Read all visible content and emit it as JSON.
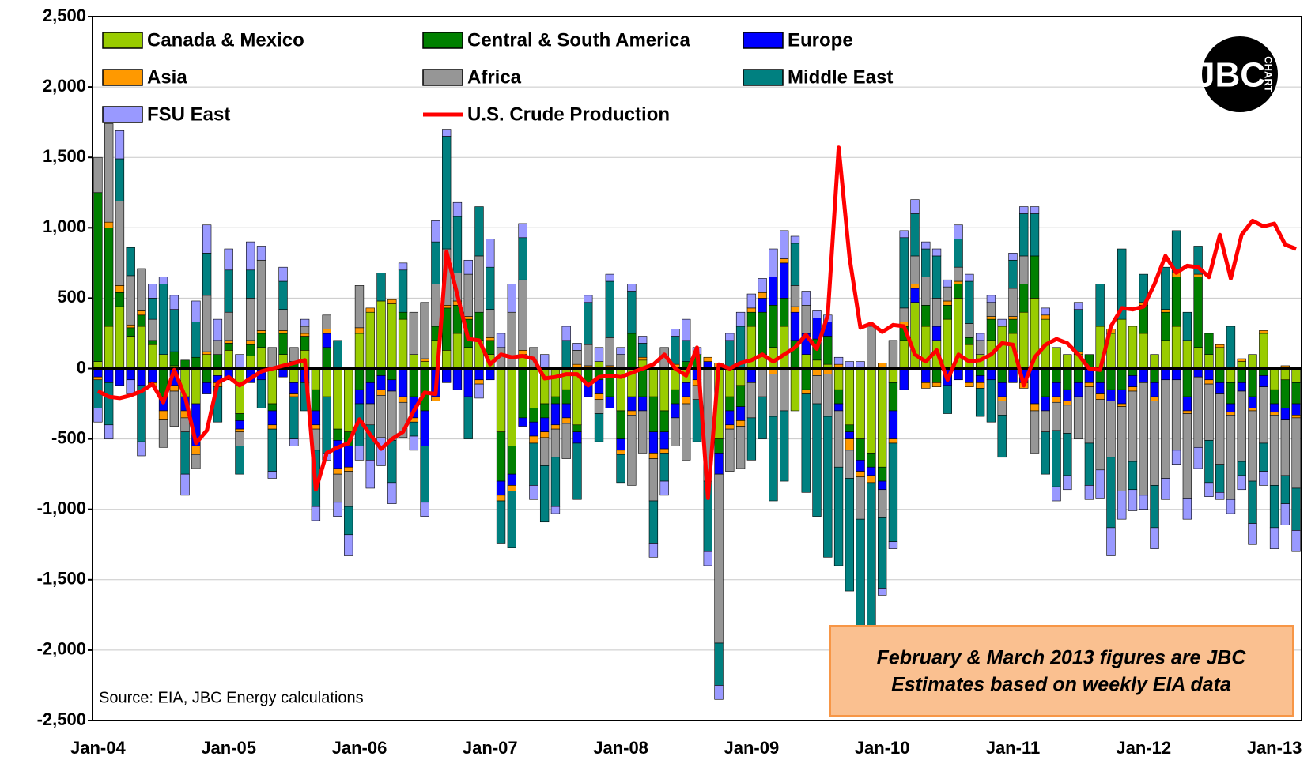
{
  "chart_data": {
    "type": "stacked-bar-line",
    "categories": [
      "Jan-04",
      null,
      null,
      null,
      null,
      null,
      null,
      null,
      null,
      null,
      null,
      null,
      "Jan-05",
      null,
      null,
      null,
      null,
      null,
      null,
      null,
      null,
      null,
      null,
      null,
      "Jan-06",
      null,
      null,
      null,
      null,
      null,
      null,
      null,
      null,
      null,
      null,
      null,
      "Jan-07",
      null,
      null,
      null,
      null,
      null,
      null,
      null,
      null,
      null,
      null,
      null,
      "Jan-08",
      null,
      null,
      null,
      null,
      null,
      null,
      null,
      null,
      null,
      null,
      null,
      "Jan-09",
      null,
      null,
      null,
      null,
      null,
      null,
      null,
      null,
      null,
      null,
      null,
      "Jan-10",
      null,
      null,
      null,
      null,
      null,
      null,
      null,
      null,
      null,
      null,
      null,
      "Jan-11",
      null,
      null,
      null,
      null,
      null,
      null,
      null,
      null,
      null,
      null,
      null,
      "Jan-12",
      null,
      null,
      null,
      null,
      null,
      null,
      null,
      null,
      null,
      null,
      null,
      "Jan-13",
      null,
      null
    ],
    "ylim": [
      -2500,
      2500
    ],
    "yticks": [
      {
        "value": -2500,
        "label": "-2,500"
      },
      {
        "value": -2000,
        "label": "-2,000"
      },
      {
        "value": -1500,
        "label": "-1,500"
      },
      {
        "value": -1000,
        "label": "-1,000"
      },
      -500,
      0,
      500,
      {
        "value": 1000,
        "label": "1,000"
      },
      {
        "value": 1500,
        "label": "1,500"
      },
      {
        "value": 2000,
        "label": "2,000"
      },
      {
        "value": 2500,
        "label": "2,500"
      }
    ],
    "grid": true,
    "series": [
      {
        "name": "Canada & Mexico",
        "color": "#99cc00",
        "type": "bar",
        "values": [
          50,
          300,
          440,
          230,
          300,
          170,
          100,
          20,
          -200,
          -250,
          100,
          -50,
          130,
          -320,
          90,
          150,
          -250,
          100,
          -100,
          130,
          -150,
          -200,
          -430,
          -450,
          250,
          400,
          480,
          460,
          350,
          100,
          50,
          200,
          130,
          250,
          150,
          200,
          100,
          -450,
          -550,
          100,
          -280,
          -250,
          -200,
          -150,
          -400,
          0,
          50,
          0,
          -300,
          -200,
          60,
          -200,
          -300,
          -150,
          -100,
          0,
          0,
          -500,
          -200,
          -120,
          300,
          100,
          150,
          300,
          -300,
          100,
          60,
          30,
          -150,
          -400,
          -500,
          -600,
          -700,
          -100,
          200,
          470,
          300,
          200,
          350,
          500,
          170,
          100,
          200,
          300,
          250,
          400,
          500,
          350,
          150,
          100,
          100,
          0,
          300,
          250,
          350,
          300,
          250,
          100,
          200,
          300,
          200,
          150,
          100,
          150,
          -100,
          50,
          100,
          250,
          -150,
          -80,
          -100
        ]
      },
      {
        "name": "Central & South America",
        "color": "#008000",
        "type": "bar",
        "values": [
          1200,
          700,
          100,
          60,
          80,
          30,
          -200,
          100,
          60,
          80,
          -100,
          100,
          50,
          -50,
          80,
          100,
          -50,
          150,
          50,
          100,
          -150,
          150,
          -80,
          -100,
          -150,
          -100,
          -50,
          -80,
          50,
          -200,
          -300,
          100,
          300,
          200,
          200,
          200,
          100,
          -350,
          -200,
          -350,
          -100,
          -100,
          -50,
          -100,
          -50,
          -100,
          -80,
          -200,
          -200,
          250,
          -200,
          -250,
          -150,
          -100,
          50,
          100,
          0,
          -100,
          -100,
          -150,
          100,
          300,
          300,
          200,
          200,
          -150,
          150,
          200,
          -100,
          -50,
          -150,
          -100,
          -100,
          -200,
          100,
          0,
          150,
          -100,
          100,
          100,
          50,
          -50,
          150,
          -100,
          100,
          200,
          300,
          -200,
          -100,
          -150,
          -100,
          100,
          -100,
          -150,
          -150,
          -50,
          200,
          -100,
          200,
          350,
          -200,
          500,
          150,
          -100,
          -150,
          -100,
          -200,
          -50,
          -100,
          -200,
          -150
        ]
      },
      {
        "name": "Europe",
        "color": "#0000ff",
        "type": "bar",
        "values": [
          -60,
          -100,
          -120,
          -80,
          -120,
          -100,
          -100,
          -120,
          -100,
          -300,
          -80,
          -50,
          -80,
          -60,
          -100,
          -80,
          -100,
          -60,
          -80,
          -100,
          -100,
          100,
          -200,
          -150,
          -100,
          -150,
          -100,
          -80,
          -200,
          -150,
          -250,
          -200,
          -100,
          -150,
          -200,
          -80,
          -80,
          -100,
          -80,
          -60,
          -100,
          -100,
          -150,
          -100,
          -80,
          -100,
          -100,
          -80,
          -80,
          -100,
          -100,
          -150,
          -120,
          -100,
          -100,
          -80,
          50,
          -150,
          -100,
          -100,
          -100,
          100,
          200,
          250,
          200,
          150,
          150,
          100,
          -50,
          -50,
          -80,
          -60,
          -60,
          -200,
          -150,
          100,
          -100,
          100,
          -120,
          -80,
          -100,
          -50,
          -80,
          -100,
          -100,
          -100,
          -250,
          -100,
          -100,
          -80,
          -100,
          -100,
          -80,
          -80,
          -100,
          -80,
          -100,
          -100,
          -80,
          -80,
          -100,
          -60,
          -80,
          -80,
          -60,
          -60,
          -80,
          -80,
          -60,
          -80,
          -80
        ]
      },
      {
        "name": "Asia",
        "color": "#ff9900",
        "type": "bar",
        "values": [
          -20,
          40,
          50,
          20,
          30,
          -30,
          -60,
          -40,
          -50,
          -60,
          20,
          -30,
          20,
          -20,
          30,
          20,
          -30,
          20,
          -20,
          20,
          -30,
          30,
          -40,
          -30,
          40,
          30,
          -40,
          30,
          -40,
          -30,
          20,
          -30,
          20,
          30,
          20,
          -30,
          20,
          -40,
          -40,
          30,
          -50,
          -40,
          -30,
          -40,
          30,
          20,
          -40,
          20,
          -30,
          -30,
          20,
          -40,
          -30,
          30,
          -50,
          -40,
          30,
          40,
          -30,
          -40,
          30,
          40,
          -40,
          30,
          40,
          -30,
          -50,
          -40,
          30,
          -80,
          -40,
          -50,
          40,
          -30,
          30,
          30,
          -40,
          -30,
          30,
          20,
          -30,
          -40,
          20,
          -30,
          20,
          -40,
          -50,
          30,
          -40,
          -30,
          20,
          -30,
          -40,
          30,
          -20,
          -30,
          20,
          -30,
          20,
          30,
          -20,
          20,
          -30,
          20,
          -20,
          20,
          -20,
          20,
          -20,
          20,
          -20
        ]
      },
      {
        "name": "Africa",
        "color": "#969696",
        "type": "bar",
        "values": [
          250,
          700,
          600,
          350,
          300,
          150,
          -200,
          -250,
          -100,
          -100,
          400,
          100,
          200,
          -100,
          300,
          500,
          150,
          150,
          100,
          50,
          -150,
          100,
          -200,
          -250,
          300,
          -150,
          -300,
          -350,
          -250,
          300,
          400,
          300,
          400,
          200,
          300,
          400,
          200,
          150,
          400,
          500,
          150,
          -200,
          -200,
          -250,
          100,
          150,
          -100,
          200,
          100,
          -500,
          -300,
          -300,
          150,
          -200,
          -400,
          -100,
          -800,
          -1200,
          -300,
          -300,
          -250,
          -200,
          -300,
          -300,
          150,
          200,
          -200,
          -300,
          -400,
          -200,
          -300,
          300,
          -200,
          200,
          100,
          200,
          200,
          200,
          100,
          100,
          100,
          100,
          100,
          -100,
          200,
          200,
          -300,
          -150,
          -200,
          -200,
          -300,
          -400,
          -500,
          -400,
          -600,
          -500,
          -800,
          -600,
          -700,
          -500,
          -600,
          -500,
          -400,
          -500,
          -600,
          -500,
          -500,
          -400,
          -500,
          -400,
          -500
        ]
      },
      {
        "name": "Middle East",
        "color": "#008080",
        "type": "bar",
        "values": [
          -200,
          -300,
          300,
          200,
          -400,
          150,
          500,
          300,
          -300,
          250,
          300,
          -250,
          300,
          -200,
          200,
          -200,
          -300,
          200,
          -300,
          -200,
          -400,
          -400,
          200,
          -200,
          -300,
          -250,
          200,
          -300,
          300,
          -100,
          -400,
          300,
          800,
          400,
          -300,
          350,
          300,
          -300,
          -400,
          300,
          -300,
          -400,
          -350,
          200,
          -400,
          300,
          -200,
          400,
          -200,
          300,
          100,
          -300,
          -200,
          200,
          150,
          -300,
          -500,
          -300,
          200,
          300,
          -300,
          -300,
          -600,
          -500,
          300,
          -700,
          -800,
          -1000,
          -700,
          -800,
          -1000,
          -1100,
          -500,
          -700,
          500,
          300,
          200,
          300,
          -200,
          200,
          300,
          -200,
          -300,
          -300,
          200,
          300,
          300,
          -300,
          -400,
          -300,
          300,
          -300,
          300,
          -500,
          500,
          -200,
          200,
          -300,
          300,
          300,
          200,
          200,
          -300,
          -200,
          300,
          -100,
          -300,
          -200,
          -300,
          -200,
          -300
        ]
      },
      {
        "name": "FSU East",
        "color": "#9999ff",
        "type": "bar",
        "values": [
          -100,
          -100,
          200,
          -100,
          -100,
          100,
          50,
          100,
          -150,
          150,
          200,
          150,
          150,
          100,
          200,
          100,
          -50,
          100,
          -50,
          50,
          -100,
          -50,
          -100,
          -150,
          -100,
          -200,
          -200,
          -150,
          50,
          -100,
          -100,
          150,
          50,
          100,
          100,
          -100,
          200,
          100,
          200,
          100,
          -100,
          100,
          -50,
          100,
          50,
          50,
          100,
          50,
          50,
          50,
          50,
          -100,
          -100,
          50,
          150,
          50,
          -100,
          -100,
          50,
          100,
          100,
          100,
          200,
          200,
          50,
          100,
          50,
          50,
          50,
          50,
          50,
          -50,
          -50,
          -50,
          50,
          100,
          50,
          50,
          50,
          100,
          50,
          50,
          50,
          50,
          50,
          50,
          50,
          50,
          -100,
          -100,
          50,
          -100,
          -200,
          -200,
          -200,
          -150,
          -100,
          -150,
          -150,
          -100,
          -150,
          -150,
          -100,
          -50,
          -100,
          -100,
          -150,
          -100,
          -150,
          -150,
          -150
        ]
      },
      {
        "name": "U.S. Crude Production",
        "color": "#ff0000",
        "type": "line",
        "values": [
          -160,
          -200,
          -210,
          -190,
          -160,
          -110,
          -240,
          -10,
          -200,
          -530,
          -440,
          -100,
          -60,
          -120,
          -70,
          -20,
          0,
          20,
          40,
          60,
          -860,
          -600,
          -560,
          -530,
          -360,
          -470,
          -570,
          -500,
          -450,
          -300,
          -170,
          -180,
          830,
          520,
          210,
          200,
          30,
          100,
          80,
          90,
          70,
          -70,
          -60,
          -40,
          -40,
          -120,
          -60,
          -50,
          -60,
          -30,
          0,
          30,
          100,
          0,
          -50,
          150,
          -920,
          30,
          0,
          40,
          60,
          100,
          50,
          100,
          150,
          240,
          140,
          380,
          1570,
          790,
          290,
          320,
          260,
          310,
          300,
          100,
          50,
          130,
          -80,
          100,
          50,
          60,
          100,
          180,
          170,
          -120,
          80,
          170,
          210,
          180,
          100,
          0,
          -10,
          300,
          430,
          420,
          440,
          600,
          800,
          680,
          730,
          720,
          650,
          950,
          640,
          950,
          1050,
          1010,
          1030,
          880,
          850
        ]
      }
    ],
    "source_note": "Source: EIA, JBC Energy calculations",
    "estimate_note": [
      "February & March 2013 figures are JBC",
      "Estimates based on weekly EIA data"
    ],
    "logo_text": "JBC",
    "logo_subtext": "CHART"
  }
}
